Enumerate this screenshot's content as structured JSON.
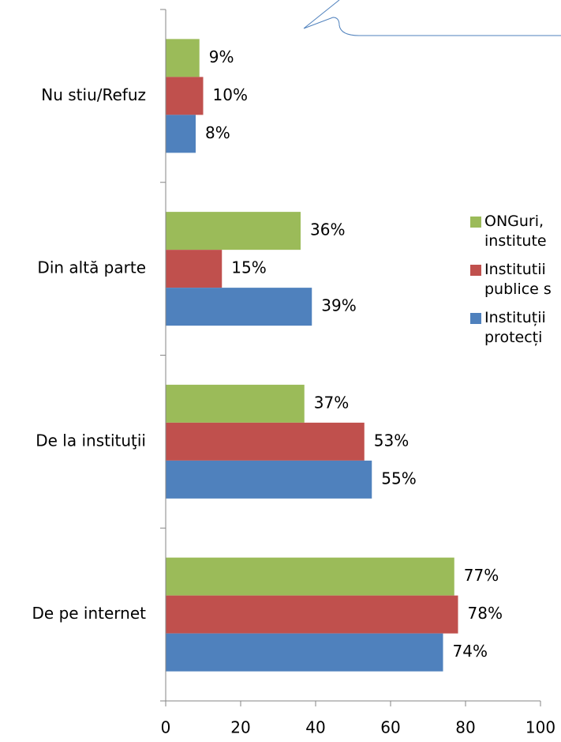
{
  "chart_data": {
    "type": "bar",
    "orientation": "horizontal",
    "categories": [
      "Nu stiu/Refuz",
      "Din altă parte",
      "De la instituţii",
      "De pe internet"
    ],
    "series": [
      {
        "name": "ONGuri, institute",
        "color": "#9bbb59",
        "values": [
          9,
          36,
          37,
          77
        ],
        "value_labels": [
          "9%",
          "36%",
          "37%",
          "77%"
        ]
      },
      {
        "name": "Institutii publice s",
        "color": "#c0504d",
        "values": [
          10,
          15,
          53,
          78
        ],
        "value_labels": [
          "10%",
          "15%",
          "53%",
          "78%"
        ]
      },
      {
        "name": "Instituții protecți",
        "color": "#4f81bd",
        "values": [
          8,
          39,
          55,
          74
        ],
        "value_labels": [
          "8%",
          "39%",
          "55%",
          "74%"
        ]
      }
    ],
    "xlim": [
      0,
      100
    ],
    "xticks": [
      0,
      20,
      40,
      60,
      80,
      100
    ],
    "legend": "right"
  }
}
